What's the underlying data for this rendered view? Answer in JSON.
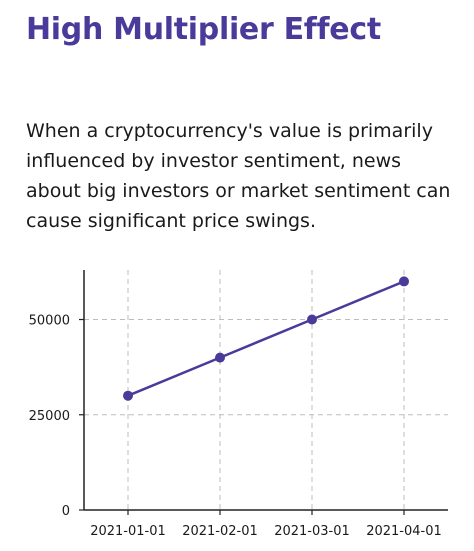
{
  "title": "High Multiplier Effect",
  "description": "When a cryptocurrency's value is primarily influenced by investor sentiment, news about big investors or market sentiment can cause significant price swings.",
  "colors": {
    "title": "#4a3a9a",
    "series": "#4a3a9a",
    "grid": "#bdbdbd",
    "axis": "#222222"
  },
  "chart_data": {
    "type": "line",
    "x": [
      "2021-01-01",
      "2021-02-01",
      "2021-03-01",
      "2021-04-01"
    ],
    "series": [
      {
        "values": [
          30000,
          40000,
          50000,
          60000
        ]
      }
    ],
    "yticks": [
      0,
      25000,
      50000
    ],
    "ylim": [
      0,
      63000
    ],
    "grid": true,
    "grid_style": "dashed",
    "markers": true
  }
}
